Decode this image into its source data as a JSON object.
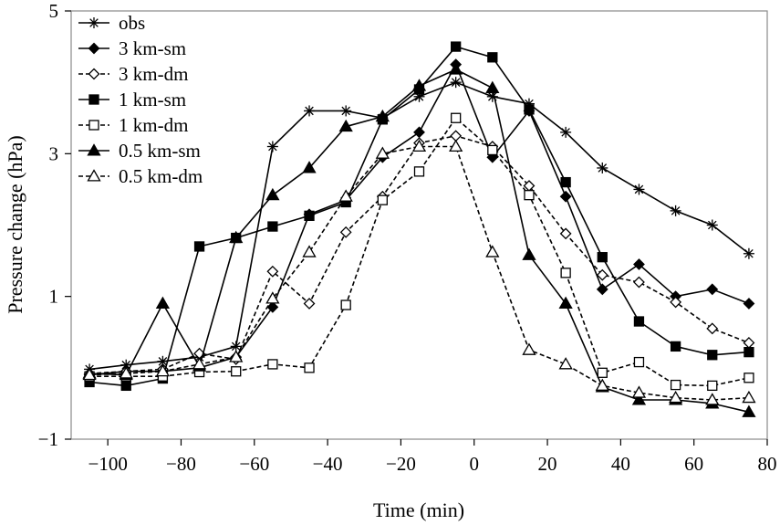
{
  "chart_data": {
    "type": "line",
    "title": "",
    "xlabel": "Time (min)",
    "ylabel": "Pressure change (hPa)",
    "xlim": [
      -110,
      80
    ],
    "ylim": [
      -1,
      5
    ],
    "xticks": [
      -100,
      -80,
      -60,
      -40,
      -20,
      0,
      20,
      40,
      60,
      80
    ],
    "xtick_labels": [
      "−100",
      "−80",
      "−60",
      "−40",
      "−20",
      "0",
      "20",
      "40",
      "60",
      "80"
    ],
    "yticks": [
      -1,
      1,
      3,
      5
    ],
    "ytick_labels": [
      "−1",
      "1",
      "3",
      "5"
    ],
    "grid": false,
    "legend_position": "top-left",
    "series": [
      {
        "name": "obs",
        "marker": "star",
        "dashed": false,
        "x": [
          -105,
          -95,
          -85,
          -75,
          -65,
          -55,
          -45,
          -35,
          -25,
          -15,
          -5,
          5,
          15,
          25,
          35,
          45,
          55,
          65,
          75
        ],
        "values": [
          -0.02,
          0.04,
          0.09,
          0.15,
          0.3,
          3.1,
          3.6,
          3.6,
          3.5,
          3.8,
          4.0,
          3.8,
          3.7,
          3.3,
          2.8,
          2.5,
          2.2,
          2.0,
          1.6
        ]
      },
      {
        "name": "3 km-sm",
        "marker": "diamond-filled",
        "dashed": false,
        "x": [
          -105,
          -95,
          -85,
          -75,
          -65,
          -55,
          -45,
          -35,
          -25,
          -15,
          -5,
          5,
          15,
          25,
          35,
          45,
          55,
          65,
          75
        ],
        "values": [
          -0.1,
          -0.05,
          -0.05,
          0.0,
          0.15,
          0.85,
          2.15,
          2.35,
          2.95,
          3.3,
          4.25,
          2.95,
          3.6,
          2.4,
          1.1,
          1.45,
          1.0,
          1.1,
          0.9
        ]
      },
      {
        "name": "3 km-dm",
        "marker": "diamond-open",
        "dashed": true,
        "x": [
          -105,
          -95,
          -85,
          -75,
          -65,
          -55,
          -45,
          -35,
          -25,
          -15,
          -5,
          5,
          15,
          25,
          35,
          45,
          55,
          65,
          75
        ],
        "values": [
          -0.08,
          -0.05,
          -0.02,
          0.2,
          0.12,
          1.35,
          0.9,
          1.9,
          2.4,
          3.15,
          3.25,
          3.1,
          2.55,
          1.88,
          1.3,
          1.2,
          0.92,
          0.55,
          0.35
        ]
      },
      {
        "name": "1 km-sm",
        "marker": "square-filled",
        "dashed": false,
        "x": [
          -105,
          -95,
          -85,
          -75,
          -65,
          -55,
          -45,
          -35,
          -25,
          -15,
          -5,
          5,
          15,
          25,
          35,
          45,
          55,
          65,
          75
        ],
        "values": [
          -0.2,
          -0.25,
          -0.15,
          1.7,
          1.82,
          1.98,
          2.13,
          2.32,
          3.48,
          3.9,
          4.5,
          4.35,
          3.62,
          2.6,
          1.55,
          0.65,
          0.3,
          0.18,
          0.22
        ]
      },
      {
        "name": "1 km-dm",
        "marker": "square-open",
        "dashed": true,
        "x": [
          -105,
          -95,
          -85,
          -75,
          -65,
          -55,
          -45,
          -35,
          -25,
          -15,
          -5,
          5,
          15,
          25,
          35,
          45,
          55,
          65,
          75
        ],
        "values": [
          -0.12,
          -0.12,
          -0.12,
          -0.06,
          -0.05,
          0.05,
          0.0,
          0.88,
          2.35,
          2.75,
          3.5,
          3.05,
          2.42,
          1.33,
          -0.07,
          0.08,
          -0.24,
          -0.25,
          -0.14
        ]
      },
      {
        "name": "0.5 km-sm",
        "marker": "triangle-filled",
        "dashed": false,
        "x": [
          -105,
          -95,
          -85,
          -75,
          -65,
          -55,
          -45,
          -35,
          -25,
          -15,
          -5,
          5,
          15,
          25,
          35,
          45,
          55,
          65,
          75
        ],
        "values": [
          -0.08,
          -0.1,
          0.9,
          0.02,
          1.82,
          2.42,
          2.8,
          3.38,
          3.52,
          3.95,
          4.18,
          3.92,
          1.58,
          0.9,
          -0.27,
          -0.45,
          -0.45,
          -0.5,
          -0.62
        ]
      },
      {
        "name": "0.5 km-dm",
        "marker": "triangle-open",
        "dashed": true,
        "x": [
          -105,
          -95,
          -85,
          -75,
          -65,
          -55,
          -45,
          -35,
          -25,
          -15,
          -5,
          5,
          15,
          25,
          35,
          45,
          55,
          65,
          75
        ],
        "values": [
          -0.1,
          -0.08,
          -0.05,
          0.05,
          0.15,
          0.97,
          1.62,
          2.4,
          3.0,
          3.1,
          3.1,
          1.62,
          0.25,
          0.05,
          -0.25,
          -0.35,
          -0.42,
          -0.45,
          -0.42
        ]
      }
    ]
  }
}
